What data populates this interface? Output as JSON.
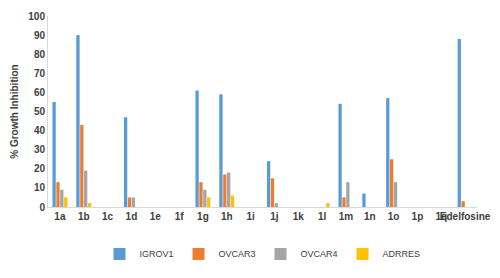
{
  "chart_data": {
    "type": "bar",
    "y_label": "% Growth Inhibition",
    "categories": [
      "1a",
      "1b",
      "1c",
      "1d",
      "1e",
      "1f",
      "1g",
      "1h",
      "1i",
      "1j",
      "1k",
      "1l",
      "1m",
      "1n",
      "1o",
      "1p",
      "1q",
      "Edelfosine"
    ],
    "series": [
      {
        "name": "IGROV1",
        "color": "#5b9bd5",
        "values": [
          55,
          90,
          0,
          47,
          0,
          0,
          61,
          59,
          0,
          24,
          0,
          0,
          54,
          7,
          57,
          0,
          0,
          88
        ]
      },
      {
        "name": "OVCAR3",
        "color": "#ed7d31",
        "values": [
          13,
          43,
          0,
          5,
          0,
          0,
          13,
          17,
          0,
          15,
          0,
          0,
          5,
          0,
          25,
          0,
          0,
          3
        ]
      },
      {
        "name": "OVCAR4",
        "color": "#a5a5a5",
        "values": [
          9,
          19,
          0,
          5,
          0,
          0,
          9,
          18,
          0,
          2,
          0,
          0,
          13,
          0,
          13,
          0,
          0,
          0
        ]
      },
      {
        "name": "ADRRES",
        "color": "#ffc000",
        "values": [
          5,
          2,
          0,
          0,
          0,
          0,
          5,
          6,
          0,
          0,
          0,
          2,
          0,
          0,
          0,
          0,
          0,
          0
        ]
      }
    ],
    "ylim": [
      0,
      100
    ],
    "yticks": [
      0,
      10,
      20,
      30,
      40,
      50,
      60,
      70,
      80,
      90,
      100
    ],
    "grid": false,
    "legend": "bottom"
  }
}
